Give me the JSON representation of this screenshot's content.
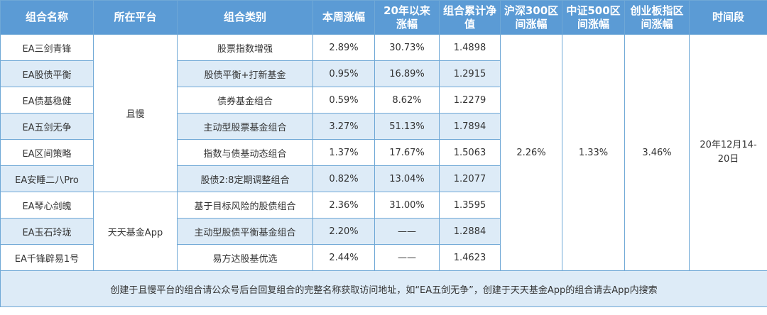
{
  "headers": [
    "组合名称",
    "所在平台",
    "组合类别",
    "本周涨幅",
    "20年以来\n涨幅",
    "组合累计净\n值",
    "沪深300区\n间涨幅",
    "中证500区\n间涨幅",
    "创业板指区\n间涨幅",
    "时间段"
  ],
  "rows": [
    {
      "name": "EA三剑青锋",
      "category": "股票指数增强",
      "week": "2.89%",
      "ytd": "30.73%",
      "nav": "1.4898"
    },
    {
      "name": "EA股债平衡",
      "category": "股债平衡+打新基金",
      "week": "0.95%",
      "ytd": "16.89%",
      "nav": "1.2915"
    },
    {
      "name": "EA债基稳健",
      "category": "债券基金组合",
      "week": "0.59%",
      "ytd": "8.62%",
      "nav": "1.2279"
    },
    {
      "name": "EA五剑无争",
      "category": "主动型股票基金组合",
      "week": "3.27%",
      "ytd": "51.13%",
      "nav": "1.7894"
    },
    {
      "name": "EA区间策略",
      "category": "指数与债基动态组合",
      "week": "1.37%",
      "ytd": "17.67%",
      "nav": "1.5063"
    },
    {
      "name": "EA安睡二八Pro",
      "category": "股债2:8定期调整组合",
      "week": "0.82%",
      "ytd": "13.04%",
      "nav": "1.2077"
    },
    {
      "name": "EA琴心剑魄",
      "category": "基于目标风险的股债组合",
      "week": "2.36%",
      "ytd": "31.00%",
      "nav": "1.3595"
    },
    {
      "name": "EA玉石玲珑",
      "category": "主动型股债平衡基金组合",
      "week": "2.20%",
      "ytd": "——",
      "nav": "1.2884"
    },
    {
      "name": "EA千锋辟易1号",
      "category": "易方达股基优选",
      "week": "2.44%",
      "ytd": "——",
      "nav": "1.4623"
    }
  ],
  "platforms": [
    "且慢",
    "天天基金App"
  ],
  "hs300": "2.26%",
  "zz500": "1.33%",
  "cyb": "3.46%",
  "period": "20年12月14-20日",
  "note": "创建于且慢平台的组合请公众号后台回复组合的完整名称获取访问地址，如“EA五剑无争”，创建于天天基金App的组合请去App内搜索",
  "colors": {
    "header_bg": "#5b9bd5",
    "alt_row_bg": "#ddebf7",
    "border": "#6fa8d6"
  }
}
